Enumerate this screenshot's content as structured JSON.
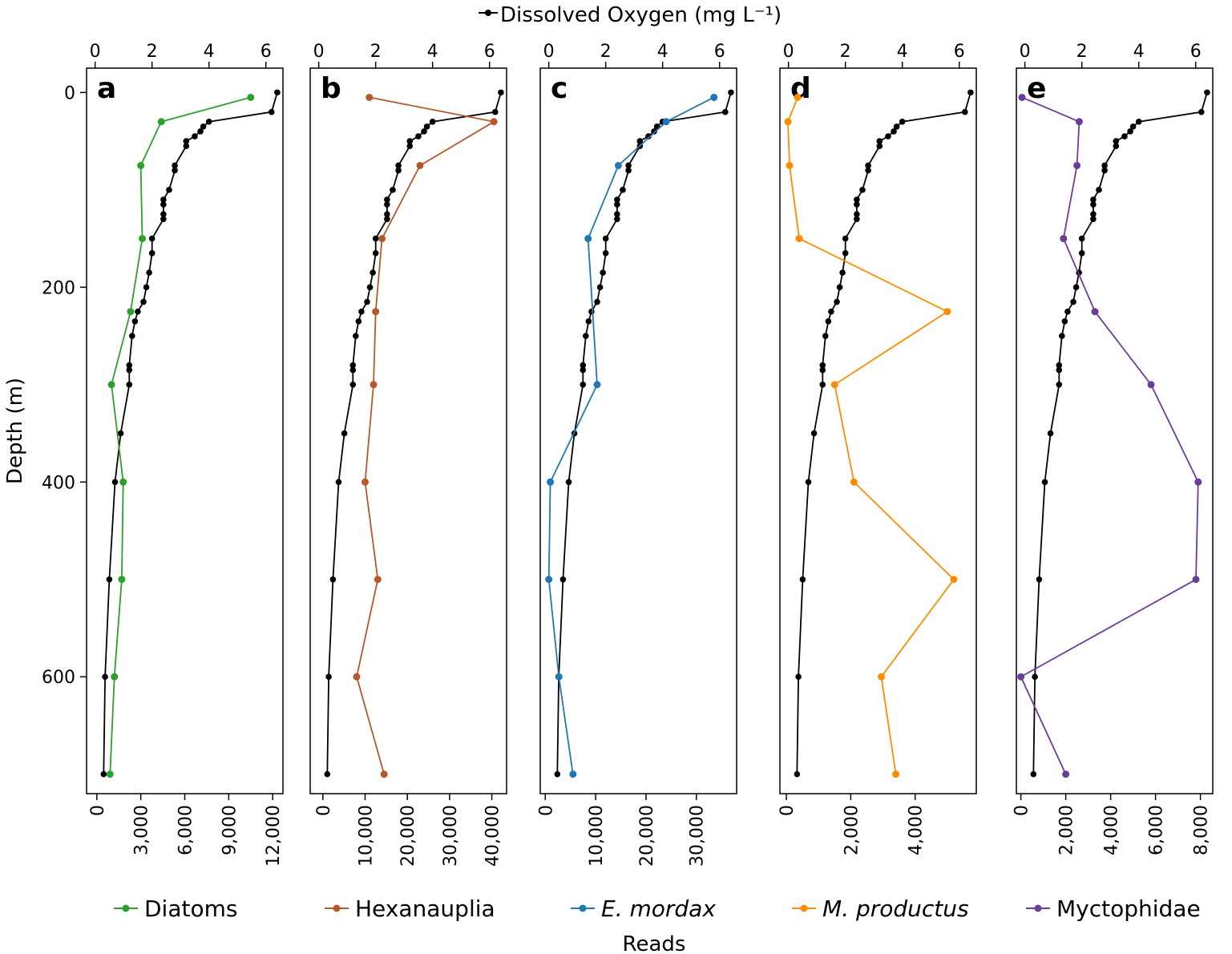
{
  "chart_data": {
    "type": "line",
    "top_axis_label": "Dissolved Oxygen (mg L⁻¹)",
    "y_axis_label": "Depth (m)",
    "bottom_axis_label": "Reads",
    "y_ticks": [
      "0",
      "200",
      "400",
      "600"
    ],
    "y_range": [
      -25,
      720
    ],
    "oxygen_ticks": [
      "0",
      "2",
      "4",
      "6"
    ],
    "oxygen_range": [
      -0.3,
      6.6
    ],
    "oxygen_color": "#000000",
    "oxygen": {
      "depth": [
        0,
        20,
        30,
        35,
        40,
        45,
        50,
        55,
        75,
        80,
        100,
        110,
        115,
        125,
        130,
        150,
        165,
        185,
        200,
        215,
        225,
        235,
        250,
        280,
        285,
        300,
        350,
        400,
        500,
        600,
        700
      ],
      "value": [
        6.4,
        6.2,
        4.0,
        3.8,
        3.7,
        3.5,
        3.2,
        3.2,
        2.8,
        2.8,
        2.6,
        2.4,
        2.4,
        2.4,
        2.4,
        2.0,
        2.0,
        1.9,
        1.8,
        1.7,
        1.5,
        1.4,
        1.3,
        1.2,
        1.2,
        1.2,
        0.9,
        0.7,
        0.5,
        0.35,
        0.3
      ]
    },
    "panels": [
      {
        "label": "a",
        "series_name": "Diatoms",
        "italic": false,
        "color": "#2ca02c",
        "reads_ticks": [
          0,
          3000,
          6000,
          9000,
          12000
        ],
        "reads_tick_labels": [
          "0",
          "3,000",
          "6,000",
          "9,000",
          "12,000"
        ],
        "reads_range": [
          -700,
          12700
        ],
        "depths": [
          5,
          30,
          75,
          150,
          225,
          300,
          400,
          500,
          600,
          700
        ],
        "reads": [
          10500,
          4400,
          3000,
          3100,
          2300,
          1000,
          1800,
          1700,
          1200,
          900
        ]
      },
      {
        "label": "b",
        "series_name": "Hexanauplia",
        "italic": false,
        "color": "#b5582a",
        "reads_ticks": [
          0,
          10000,
          20000,
          30000,
          40000
        ],
        "reads_tick_labels": [
          "0",
          "10,000",
          "20,000",
          "30,000",
          "40,000"
        ],
        "reads_range": [
          -3000,
          43500
        ],
        "depths": [
          5,
          30,
          75,
          150,
          225,
          300,
          400,
          500,
          600,
          700
        ],
        "reads": [
          11000,
          40500,
          23000,
          14000,
          12500,
          12000,
          10000,
          13000,
          8000,
          14500
        ]
      },
      {
        "label": "c",
        "series_name": "E. mordax",
        "italic": true,
        "color": "#1f77b4",
        "reads_ticks": [
          0,
          10000,
          20000,
          30000
        ],
        "reads_tick_labels": [
          "0",
          "10,000",
          "20,000",
          "30,000"
        ],
        "reads_range": [
          -1000,
          38000
        ],
        "depths": [
          5,
          30,
          75,
          150,
          300,
          400,
          500,
          600,
          700
        ],
        "reads": [
          33500,
          24000,
          14500,
          8500,
          10300,
          1000,
          700,
          2700,
          5500
        ]
      },
      {
        "label": "d",
        "series_name": "M. productus",
        "italic": true,
        "color": "#ff8c00",
        "reads_ticks": [
          0,
          2000,
          4000
        ],
        "reads_tick_labels": [
          "0",
          "2,000",
          "4,000"
        ],
        "reads_range": [
          -200,
          5900
        ],
        "depths": [
          5,
          30,
          75,
          150,
          225,
          300,
          400,
          500,
          600,
          700
        ],
        "reads": [
          350,
          50,
          100,
          400,
          5000,
          1500,
          2100,
          5200,
          2950,
          3400
        ]
      },
      {
        "label": "e",
        "series_name": "Myctophidae",
        "italic": false,
        "color": "#6a3d9a",
        "reads_ticks": [
          0,
          2000,
          4000,
          6000,
          8000
        ],
        "reads_tick_labels": [
          "0",
          "2,000",
          "4,000",
          "6,000",
          "8,000"
        ],
        "reads_range": [
          -200,
          8550
        ],
        "depths": [
          5,
          30,
          75,
          150,
          225,
          300,
          400,
          500,
          600,
          700
        ],
        "reads": [
          50,
          2600,
          2500,
          1900,
          3300,
          5800,
          7900,
          7800,
          0,
          2000
        ]
      }
    ]
  }
}
